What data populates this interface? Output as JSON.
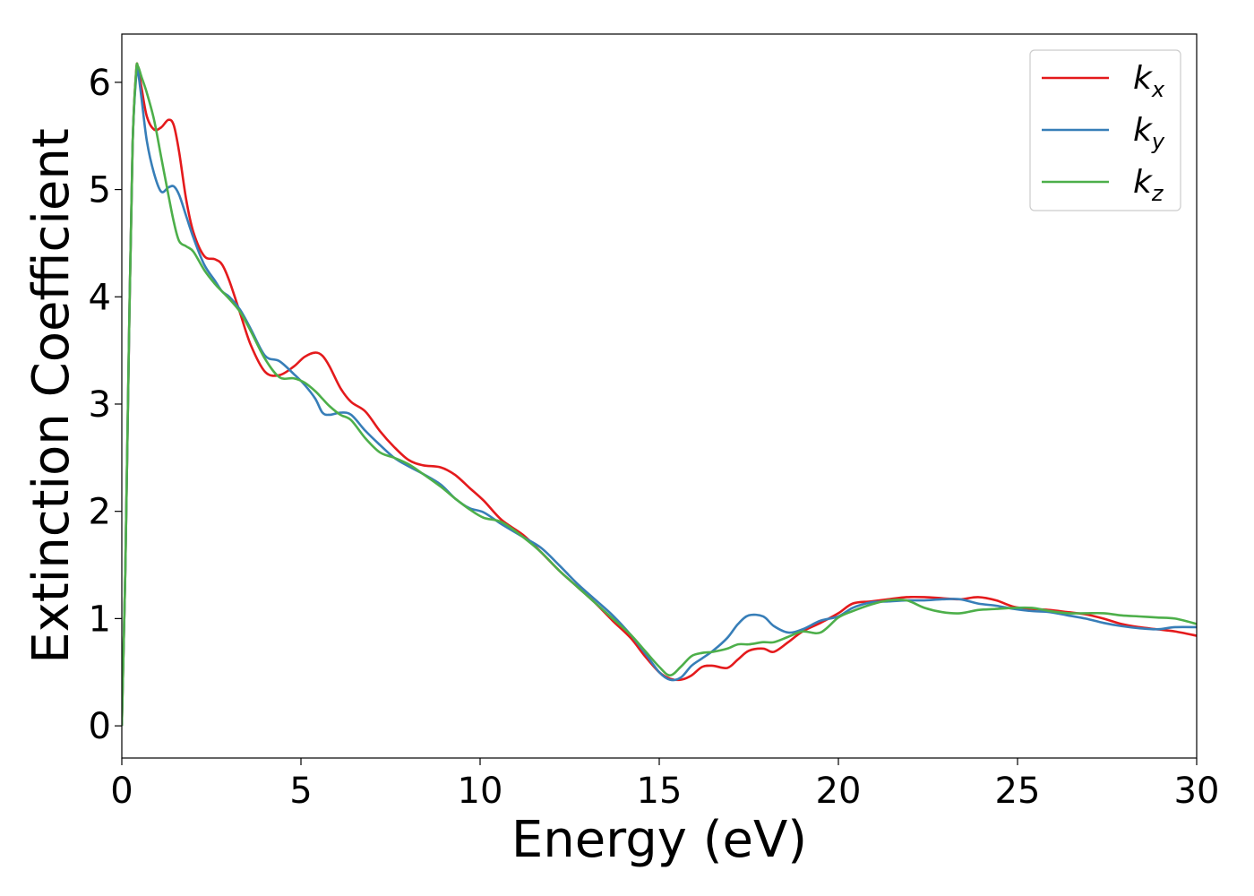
{
  "chart_data": {
    "type": "line",
    "title": "",
    "xlabel": "Energy (eV)",
    "ylabel": "Extinction Coefficient",
    "xlim": [
      0,
      30
    ],
    "ylim": [
      -0.3,
      6.45
    ],
    "xticks": [
      0,
      5,
      10,
      15,
      20,
      25,
      30
    ],
    "yticks": [
      0,
      1,
      2,
      3,
      4,
      5,
      6
    ],
    "grid": false,
    "legend_position": "top-right",
    "series": [
      {
        "name": "k",
        "subscript": "x",
        "color": "#e41a1c",
        "x": [
          0,
          0.1,
          0.2,
          0.3,
          0.4,
          0.45,
          0.55,
          0.7,
          0.9,
          1.1,
          1.3,
          1.45,
          1.6,
          1.8,
          2.0,
          2.3,
          2.6,
          2.8,
          3.0,
          3.3,
          3.6,
          4.0,
          4.4,
          4.8,
          5.1,
          5.4,
          5.6,
          5.8,
          6.1,
          6.4,
          6.8,
          7.2,
          7.6,
          8.0,
          8.4,
          8.9,
          9.3,
          9.7,
          10.1,
          10.6,
          11.2,
          11.7,
          12.2,
          12.7,
          13.2,
          13.7,
          14.2,
          14.6,
          15.0,
          15.3,
          15.6,
          15.9,
          16.2,
          16.5,
          16.9,
          17.2,
          17.5,
          17.9,
          18.2,
          18.6,
          19.0,
          19.5,
          20.0,
          20.4,
          20.9,
          21.4,
          21.9,
          22.4,
          22.9,
          23.4,
          23.9,
          24.4,
          24.9,
          25.4,
          25.9,
          26.4,
          26.9,
          27.4,
          27.9,
          28.4,
          28.9,
          29.4,
          30.0
        ],
        "y": [
          0,
          1.5,
          3.6,
          5.4,
          6.1,
          6.14,
          5.95,
          5.68,
          5.56,
          5.58,
          5.65,
          5.6,
          5.35,
          4.9,
          4.6,
          4.38,
          4.35,
          4.3,
          4.15,
          3.85,
          3.55,
          3.3,
          3.27,
          3.35,
          3.44,
          3.48,
          3.45,
          3.35,
          3.15,
          3.02,
          2.93,
          2.75,
          2.6,
          2.48,
          2.43,
          2.41,
          2.34,
          2.22,
          2.1,
          1.92,
          1.78,
          1.62,
          1.45,
          1.3,
          1.15,
          0.98,
          0.82,
          0.65,
          0.5,
          0.44,
          0.43,
          0.47,
          0.55,
          0.56,
          0.54,
          0.62,
          0.7,
          0.72,
          0.69,
          0.78,
          0.88,
          0.96,
          1.05,
          1.14,
          1.16,
          1.18,
          1.2,
          1.2,
          1.19,
          1.18,
          1.2,
          1.17,
          1.11,
          1.09,
          1.08,
          1.06,
          1.04,
          1.0,
          0.95,
          0.92,
          0.9,
          0.88,
          0.84
        ]
      },
      {
        "name": "k",
        "subscript": "y",
        "color": "#377eb8",
        "x": [
          0,
          0.1,
          0.2,
          0.3,
          0.4,
          0.45,
          0.55,
          0.7,
          0.9,
          1.1,
          1.3,
          1.45,
          1.6,
          1.8,
          2.0,
          2.3,
          2.6,
          2.8,
          3.0,
          3.3,
          3.6,
          4.0,
          4.4,
          4.8,
          5.1,
          5.4,
          5.6,
          5.8,
          6.1,
          6.4,
          6.8,
          7.2,
          7.6,
          8.0,
          8.4,
          8.9,
          9.3,
          9.7,
          10.1,
          10.6,
          11.2,
          11.7,
          12.2,
          12.7,
          13.2,
          13.7,
          14.2,
          14.6,
          15.0,
          15.3,
          15.6,
          15.9,
          16.2,
          16.5,
          16.9,
          17.2,
          17.5,
          17.9,
          18.2,
          18.6,
          19.0,
          19.5,
          20.0,
          20.4,
          20.9,
          21.4,
          21.9,
          22.4,
          22.9,
          23.4,
          23.9,
          24.4,
          24.9,
          25.4,
          25.9,
          26.4,
          26.9,
          27.4,
          27.9,
          28.4,
          28.9,
          29.4,
          30.0
        ],
        "y": [
          0,
          1.5,
          3.6,
          5.4,
          6.05,
          6.1,
          5.85,
          5.45,
          5.15,
          4.98,
          5.02,
          5.03,
          4.95,
          4.75,
          4.55,
          4.3,
          4.15,
          4.05,
          4.0,
          3.88,
          3.7,
          3.45,
          3.4,
          3.28,
          3.18,
          3.05,
          2.92,
          2.9,
          2.92,
          2.9,
          2.75,
          2.62,
          2.5,
          2.42,
          2.35,
          2.25,
          2.12,
          2.03,
          1.99,
          1.88,
          1.76,
          1.66,
          1.5,
          1.33,
          1.18,
          1.03,
          0.85,
          0.68,
          0.5,
          0.43,
          0.45,
          0.56,
          0.63,
          0.7,
          0.82,
          0.95,
          1.03,
          1.02,
          0.93,
          0.87,
          0.9,
          0.98,
          1.02,
          1.1,
          1.15,
          1.16,
          1.17,
          1.17,
          1.18,
          1.18,
          1.14,
          1.12,
          1.09,
          1.07,
          1.06,
          1.03,
          1.0,
          0.96,
          0.93,
          0.91,
          0.9,
          0.92,
          0.92
        ]
      },
      {
        "name": "k",
        "subscript": "z",
        "color": "#4daf4a",
        "x": [
          0,
          0.1,
          0.2,
          0.3,
          0.4,
          0.45,
          0.55,
          0.7,
          0.9,
          1.1,
          1.3,
          1.45,
          1.6,
          1.8,
          2.0,
          2.3,
          2.6,
          2.8,
          3.0,
          3.3,
          3.6,
          4.0,
          4.4,
          4.8,
          5.1,
          5.4,
          5.6,
          5.8,
          6.1,
          6.4,
          6.8,
          7.2,
          7.6,
          8.0,
          8.4,
          8.9,
          9.3,
          9.7,
          10.1,
          10.6,
          11.2,
          11.7,
          12.2,
          12.7,
          13.2,
          13.7,
          14.2,
          14.6,
          15.0,
          15.3,
          15.6,
          15.9,
          16.2,
          16.5,
          16.9,
          17.2,
          17.5,
          17.9,
          18.2,
          18.6,
          19.0,
          19.5,
          20.0,
          20.4,
          20.9,
          21.4,
          21.9,
          22.4,
          22.9,
          23.4,
          23.9,
          24.4,
          24.9,
          25.4,
          25.9,
          26.4,
          26.9,
          27.4,
          27.9,
          28.4,
          28.9,
          29.4,
          30.0
        ],
        "y": [
          0,
          1.5,
          3.6,
          5.4,
          6.1,
          6.15,
          6.05,
          5.9,
          5.65,
          5.3,
          4.95,
          4.7,
          4.52,
          4.47,
          4.42,
          4.25,
          4.12,
          4.05,
          3.98,
          3.86,
          3.68,
          3.42,
          3.25,
          3.24,
          3.2,
          3.12,
          3.05,
          2.98,
          2.9,
          2.85,
          2.68,
          2.55,
          2.5,
          2.44,
          2.35,
          2.23,
          2.12,
          2.02,
          1.94,
          1.9,
          1.76,
          1.62,
          1.45,
          1.3,
          1.15,
          1.0,
          0.85,
          0.7,
          0.55,
          0.47,
          0.55,
          0.65,
          0.68,
          0.69,
          0.72,
          0.76,
          0.76,
          0.78,
          0.78,
          0.83,
          0.88,
          0.87,
          1.01,
          1.07,
          1.13,
          1.17,
          1.17,
          1.1,
          1.06,
          1.05,
          1.08,
          1.09,
          1.1,
          1.1,
          1.07,
          1.05,
          1.05,
          1.05,
          1.03,
          1.02,
          1.01,
          1.0,
          0.95
        ]
      }
    ]
  }
}
